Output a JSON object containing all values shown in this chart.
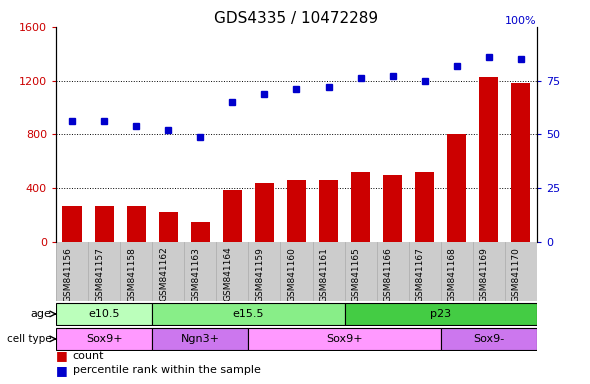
{
  "title": "GDS4335 / 10472289",
  "samples": [
    "GSM841156",
    "GSM841157",
    "GSM841158",
    "GSM841162",
    "GSM841163",
    "GSM841164",
    "GSM841159",
    "GSM841160",
    "GSM841161",
    "GSM841165",
    "GSM841166",
    "GSM841167",
    "GSM841168",
    "GSM841169",
    "GSM841170"
  ],
  "counts": [
    270,
    270,
    270,
    220,
    150,
    390,
    440,
    460,
    460,
    520,
    500,
    520,
    800,
    1230,
    1185
  ],
  "percentiles": [
    56,
    56,
    54,
    52,
    49,
    65,
    69,
    71,
    72,
    76,
    77,
    75,
    82,
    86,
    85
  ],
  "ylim_left": [
    0,
    1600
  ],
  "ylim_right": [
    0,
    100
  ],
  "yticks_left": [
    0,
    400,
    800,
    1200,
    1600
  ],
  "yticks_right": [
    0,
    25,
    50,
    75,
    100
  ],
  "bar_color": "#cc0000",
  "dot_color": "#0000cc",
  "age_groups": [
    {
      "label": "e10.5",
      "start": 0,
      "end": 3,
      "color": "#bbffbb"
    },
    {
      "label": "e15.5",
      "start": 3,
      "end": 9,
      "color": "#88ee88"
    },
    {
      "label": "p23",
      "start": 9,
      "end": 15,
      "color": "#44cc44"
    }
  ],
  "cell_groups": [
    {
      "label": "Sox9+",
      "start": 0,
      "end": 3,
      "color": "#ff99ff"
    },
    {
      "label": "Ngn3+",
      "start": 3,
      "end": 6,
      "color": "#cc77ee"
    },
    {
      "label": "Sox9+",
      "start": 6,
      "end": 12,
      "color": "#ff99ff"
    },
    {
      "label": "Sox9-",
      "start": 12,
      "end": 15,
      "color": "#cc77ee"
    }
  ],
  "legend_count_color": "#cc0000",
  "legend_dot_color": "#0000cc",
  "tick_label_color_left": "#cc0000",
  "tick_label_color_right": "#0000cc",
  "label_band_color": "#cccccc",
  "label_band_line_color": "#aaaaaa"
}
